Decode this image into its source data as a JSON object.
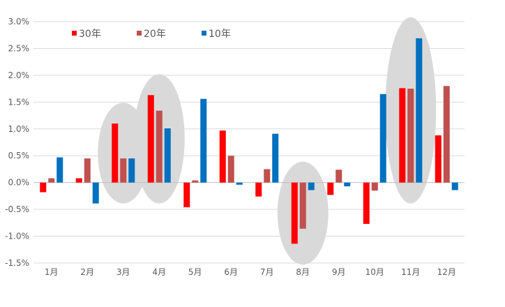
{
  "chart_data": {
    "type": "bar",
    "categories": [
      "1月",
      "2月",
      "3月",
      "4月",
      "5月",
      "6月",
      "7月",
      "8月",
      "9月",
      "10月",
      "11月",
      "12月"
    ],
    "series": [
      {
        "name": "30年",
        "color": "#ff0000",
        "values": [
          -0.18,
          0.08,
          1.1,
          1.63,
          -0.46,
          0.97,
          -0.26,
          -1.14,
          -0.23,
          -0.77,
          1.76,
          0.88
        ]
      },
      {
        "name": "20年",
        "color": "#c0504d",
        "values": [
          0.08,
          0.45,
          0.45,
          1.34,
          0.04,
          0.5,
          0.25,
          -0.86,
          0.24,
          -0.15,
          1.75,
          1.8
        ]
      },
      {
        "name": "10年",
        "color": "#0070c0",
        "values": [
          0.47,
          -0.39,
          0.45,
          1.01,
          1.56,
          -0.04,
          0.91,
          -0.14,
          -0.07,
          1.65,
          2.69,
          -0.14
        ]
      }
    ],
    "yticks": [
      "3.0%",
      "2.5%",
      "2.0%",
      "1.5%",
      "1.0%",
      "0.5%",
      "0.0%",
      "-0.5%",
      "-1.0%",
      "-1.5%"
    ],
    "ylim": [
      -1.5,
      3.0
    ],
    "grid": true,
    "legend_position": "top-left",
    "highlight_color": "#d9d9d9",
    "highlighted_categories": [
      "3月",
      "4月",
      "8月",
      "11月"
    ]
  }
}
